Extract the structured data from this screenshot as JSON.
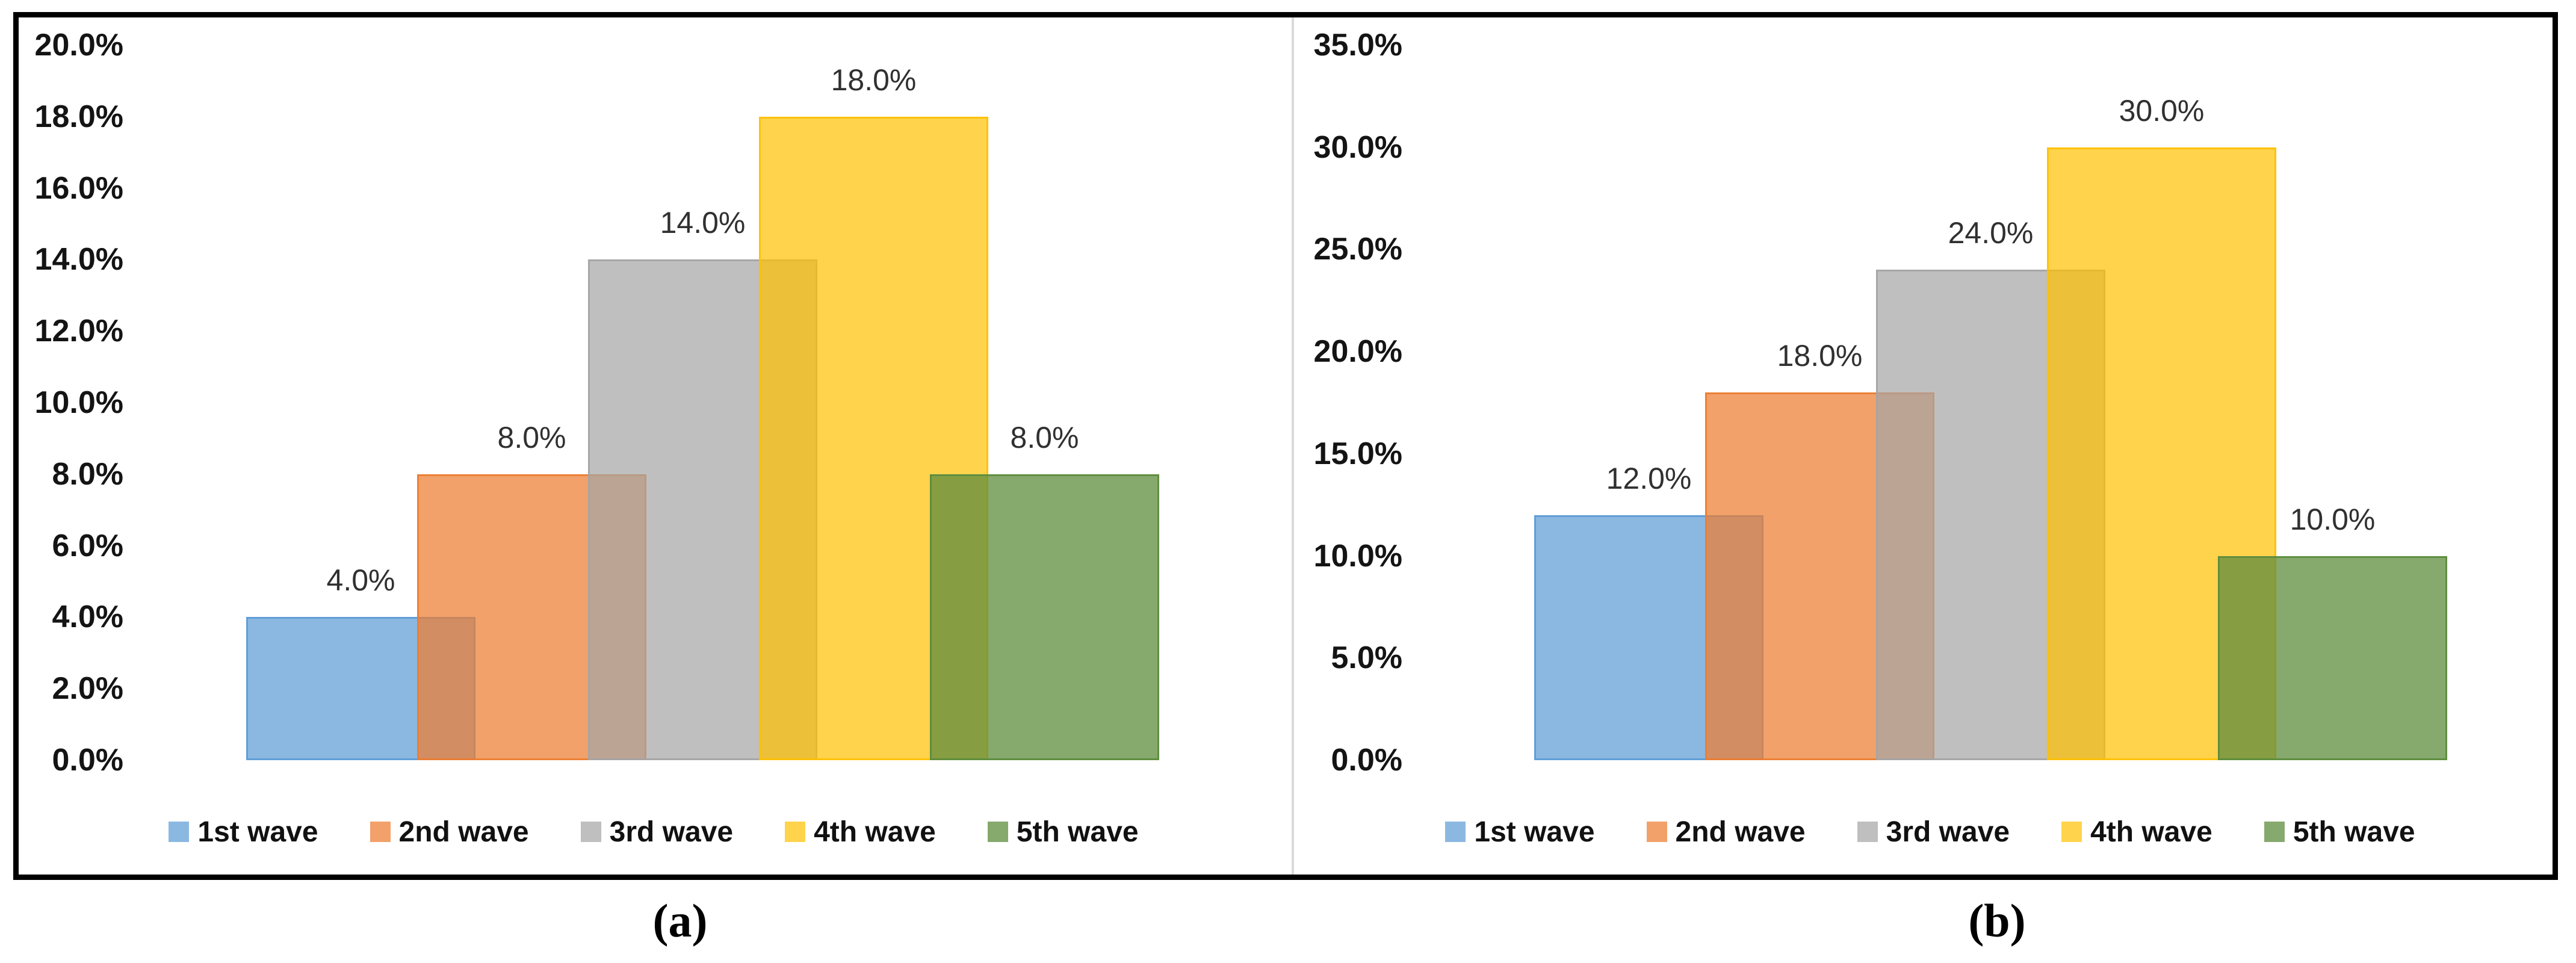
{
  "figure": {
    "background": "#ffffff",
    "border_color": "#000000",
    "divider_color": "#d9d9d9",
    "panels": [
      {
        "id": "a",
        "caption": "(a)"
      },
      {
        "id": "b",
        "caption": "(b)"
      }
    ]
  },
  "chart_data": [
    {
      "type": "bar",
      "panel": "a",
      "title": "",
      "xlabel": "",
      "ylabel": "",
      "categories": [
        "1st wave",
        "2nd wave",
        "3rd wave",
        "4th wave",
        "5th wave"
      ],
      "values": [
        4.0,
        8.0,
        14.0,
        18.0,
        8.0
      ],
      "data_labels": [
        "4.0%",
        "8.0%",
        "14.0%",
        "18.0%",
        "8.0%"
      ],
      "y_tick_labels": [
        "0.0%",
        "2.0%",
        "4.0%",
        "6.0%",
        "8.0%",
        "10.0%",
        "12.0%",
        "14.0%",
        "16.0%",
        "18.0%",
        "20.0%"
      ],
      "ylim": [
        0,
        20
      ],
      "y_tick_step": 2,
      "gridlines": false,
      "legend_position": "bottom",
      "legend_labels": [
        "1st wave",
        "2nd wave",
        "3rd wave",
        "4th wave",
        "5th wave"
      ],
      "series_colors": [
        "#5B9BD5",
        "#ED7D31",
        "#A5A5A5",
        "#FFC000",
        "#5E8C3E"
      ],
      "series_fill_alpha": [
        0.71,
        0.72,
        0.71,
        0.7,
        0.75
      ],
      "bar_overlap_fraction": 0.255
    },
    {
      "type": "bar",
      "panel": "b",
      "title": "",
      "xlabel": "",
      "ylabel": "",
      "categories": [
        "1st wave",
        "2nd wave",
        "3rd wave",
        "4th wave",
        "5th wave"
      ],
      "values": [
        12.0,
        18.0,
        24.0,
        30.0,
        10.0
      ],
      "data_labels": [
        "12.0%",
        "18.0%",
        "24.0%",
        "30.0%",
        "10.0%"
      ],
      "y_tick_labels": [
        "0.0%",
        "5.0%",
        "10.0%",
        "15.0%",
        "20.0%",
        "25.0%",
        "30.0%",
        "35.0%"
      ],
      "ylim": [
        0,
        35
      ],
      "y_tick_step": 5,
      "gridlines": false,
      "legend_position": "bottom",
      "legend_labels": [
        "1st wave",
        "2nd wave",
        "3rd wave",
        "4th wave",
        "5th wave"
      ],
      "series_colors": [
        "#5B9BD5",
        "#ED7D31",
        "#A5A5A5",
        "#FFC000",
        "#5E8C3E"
      ],
      "series_fill_alpha": [
        0.71,
        0.72,
        0.71,
        0.7,
        0.75
      ],
      "bar_overlap_fraction": 0.255
    }
  ]
}
